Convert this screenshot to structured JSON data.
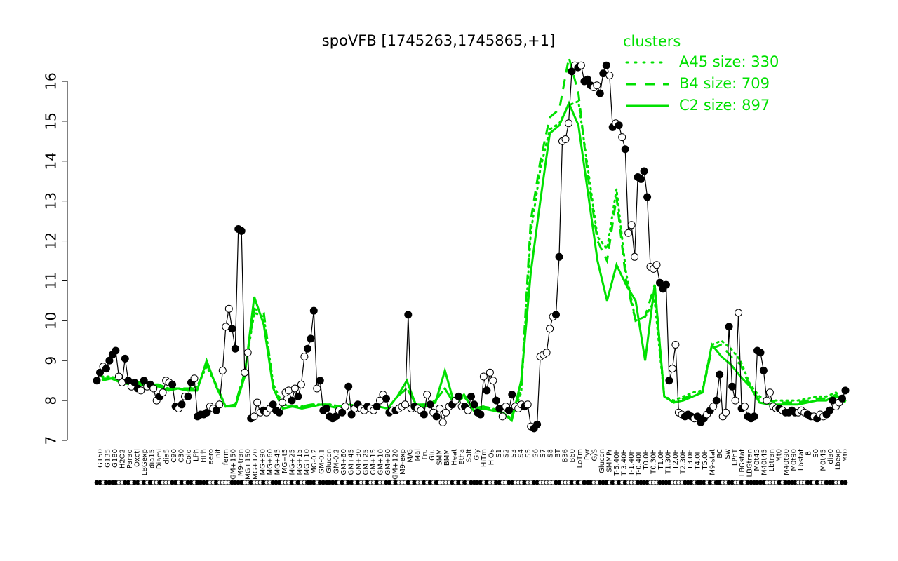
{
  "chart_data": {
    "type": "line",
    "title": "spoVFB [1745263,1745865,+1]",
    "xlabel": "",
    "ylabel": "",
    "ylim": [
      7,
      16.5
    ],
    "yticks": [
      7,
      8,
      9,
      10,
      11,
      12,
      13,
      14,
      15,
      16
    ],
    "xtick_labels": [
      "G150",
      "G135",
      "G180",
      "H2O2",
      "Paraq",
      "Oxctl",
      "LBGexp",
      "dia15",
      "Diami",
      "dia5",
      "C90",
      "C30",
      "Cold",
      "LPh",
      "HPh",
      "aero",
      "nit",
      "ferm",
      "GM+150",
      "M9-tran",
      "MG+150",
      "MG+120",
      "MG+90",
      "MG+60",
      "MG+45",
      "MG+t5",
      "MG+25",
      "MG+15",
      "MG+10",
      "MG-0.2",
      "GM-0.1",
      "Glucon",
      "GM-0.2",
      "GM+60",
      "GM+45",
      "GM+30",
      "GM+25",
      "GM+15",
      "GM+10",
      "GM+90",
      "GM+120",
      "M9-exp",
      "M/G",
      "Mal",
      "Fru",
      "Glu",
      "SMM",
      "BMM",
      "Heat",
      "Etha",
      "Salt",
      "Gly",
      "HiTm",
      "HiOs",
      "S1",
      "S2",
      "S3",
      "S4",
      "S5",
      "S6",
      "S7",
      "S8",
      "BT",
      "B36",
      "B60",
      "LoTm",
      "Pyr",
      "G/S",
      "Glucon",
      "SMMPr",
      "T-5.40H",
      "T-3.40H",
      "T-1.40H",
      "T-0.40H",
      "T0.0H",
      "T0.30H",
      "T1.0H",
      "T1.30H",
      "T2.0H",
      "T2.30H",
      "T3.0H",
      "T4.0H",
      "T5.0H",
      "M9-stat",
      "BC",
      "Sw",
      "LPhT",
      "LBGstat",
      "LBGtran",
      "M0t45",
      "M40t45",
      "Lbtran",
      "Mt0",
      "M40t90",
      "M0t90",
      "Lbstat",
      "BI",
      "S0",
      "M0t45",
      "dia0",
      "Lbexp",
      "Mt0"
    ],
    "main_series": {
      "values": [
        8.5,
        8.7,
        8.85,
        8.8,
        9.0,
        9.15,
        9.25,
        8.6,
        8.45,
        9.05,
        8.5,
        8.35,
        8.45,
        8.3,
        8.25,
        8.5,
        8.35,
        8.4,
        8.3,
        8.0,
        8.1,
        8.2,
        8.5,
        8.45,
        8.4,
        7.85,
        7.8,
        7.9,
        8.1,
        8.1,
        8.45,
        8.55,
        7.6,
        7.65,
        7.65,
        7.7,
        7.85,
        7.8,
        7.75,
        7.9,
        8.75,
        9.85,
        10.3,
        9.8,
        9.3,
        12.3,
        12.25,
        8.7,
        9.2,
        7.55,
        7.6,
        7.95,
        7.7,
        7.75,
        7.7,
        7.8,
        7.9,
        7.75,
        7.7,
        7.95,
        8.2,
        8.25,
        8.0,
        8.3,
        8.1,
        8.4,
        9.1,
        9.3,
        9.55,
        10.25,
        8.3,
        8.5,
        7.75,
        7.8,
        7.6,
        7.55,
        7.6,
        7.75,
        7.7,
        7.85,
        8.35,
        7.65,
        7.8,
        7.9,
        7.8,
        7.75,
        7.85,
        7.8,
        7.75,
        7.85,
        8.0,
        8.15,
        8.05,
        7.7,
        7.75,
        7.75,
        7.8,
        7.85,
        7.9,
        10.15,
        7.8,
        7.85,
        7.8,
        7.75,
        7.65,
        8.15,
        7.9,
        7.7,
        7.6,
        7.8,
        7.45,
        7.7,
        7.85,
        7.9,
        8.0,
        8.1,
        7.85,
        7.85,
        7.75,
        8.1,
        7.9,
        7.7,
        7.65,
        8.6,
        8.25,
        8.7,
        8.5,
        8.0,
        7.8,
        7.6,
        7.85,
        7.75,
        8.15,
        7.85,
        7.8,
        7.9,
        7.85,
        7.9,
        7.35,
        7.3,
        7.4,
        9.1,
        9.15,
        9.2,
        9.8,
        10.1,
        10.15,
        11.6,
        14.5,
        14.55,
        14.95,
        16.25,
        16.4,
        16.35,
        16.4,
        16.0,
        16.05,
        15.9,
        15.85,
        15.9,
        15.7,
        16.2,
        16.4,
        16.15,
        14.85,
        14.95,
        14.9,
        14.6,
        14.3,
        12.2,
        12.4,
        11.6,
        13.6,
        13.55,
        13.75,
        13.1,
        11.35,
        11.3,
        11.4,
        10.95,
        10.8,
        10.9,
        8.5,
        8.8,
        9.4,
        7.7,
        7.65,
        7.6,
        7.65,
        7.6,
        7.55,
        7.6,
        7.45,
        7.55,
        7.65,
        7.75,
        7.85,
        8.0,
        8.65,
        7.6,
        7.7,
        9.85,
        8.35,
        8.0,
        10.2,
        7.8,
        7.85,
        7.6,
        7.55,
        7.6,
        9.25,
        9.2,
        8.75,
        8.0,
        8.2,
        7.85,
        7.8,
        7.8,
        7.75,
        7.7,
        7.7,
        7.75,
        7.7,
        7.7,
        7.75,
        7.7,
        7.65,
        7.6,
        7.6,
        7.55,
        7.65,
        7.6,
        7.65,
        7.75,
        8.0,
        7.85,
        7.95,
        8.05,
        8.25
      ]
    },
    "main_filled_markers": [
      0,
      1,
      3,
      4,
      5,
      6,
      9,
      10,
      12,
      13,
      15,
      17,
      20,
      24,
      25,
      27,
      29,
      30,
      32,
      33,
      34,
      35,
      38,
      43,
      44,
      45,
      46,
      49,
      53,
      56,
      57,
      58,
      62,
      64,
      67,
      68,
      69,
      71,
      72,
      73,
      74,
      75,
      76,
      78,
      80,
      81,
      83,
      86,
      89,
      92,
      93,
      95,
      99,
      101,
      104,
      106,
      108,
      113,
      115,
      117,
      119,
      120,
      121,
      122,
      124,
      127,
      128,
      131,
      132,
      136,
      139,
      140,
      146,
      147,
      151,
      153,
      155,
      156,
      157,
      160,
      161,
      162,
      164,
      166,
      168,
      172,
      173,
      174,
      175,
      179,
      180,
      181,
      182,
      187,
      188,
      189,
      191,
      192,
      193,
      195,
      197,
      198,
      201,
      202,
      205,
      207,
      208,
      209,
      210,
      211,
      212,
      217,
      219,
      220,
      221,
      222,
      226,
      227,
      229,
      232,
      233,
      234,
      237,
      238,
      243,
      244,
      245,
      246,
      247,
      250,
      251
    ],
    "series": [
      {
        "name": "A45 size: 330",
        "style": "dotted",
        "color": "#00e000",
        "values": [
          8.6,
          8.6,
          8.5,
          8.45,
          8.45,
          8.4,
          8.4,
          8.3,
          8.3,
          8.3,
          8.35,
          8.85,
          8.4,
          7.85,
          7.9,
          8.7,
          10.2,
          10.1,
          8.4,
          7.9,
          7.85,
          7.85,
          7.9,
          7.9,
          7.9,
          7.85,
          7.9,
          7.85,
          7.85,
          7.85,
          7.8,
          8.1,
          8.3,
          7.9,
          7.9,
          8.0,
          8.3,
          7.9,
          8.1,
          7.8,
          7.85,
          7.8,
          7.7,
          7.55,
          8.2,
          12.2,
          13.8,
          14.8,
          14.95,
          15.4,
          15.5,
          13.8,
          12.1,
          11.8,
          13.3,
          11.2,
          10.0,
          10.1,
          10.5,
          8.1,
          8.0,
          8.1,
          8.2,
          8.25,
          9.4,
          9.5,
          9.3,
          9.0,
          8.4,
          8.1,
          8.0,
          8.0,
          8.0,
          8.0,
          8.05,
          8.1,
          8.1,
          8.2,
          8.0
        ]
      },
      {
        "name": "B4 size: 709",
        "style": "dashed",
        "color": "#00e000",
        "values": [
          8.55,
          8.55,
          8.5,
          8.45,
          8.45,
          8.4,
          8.4,
          8.3,
          8.3,
          8.3,
          8.3,
          8.9,
          8.4,
          7.85,
          7.9,
          8.7,
          10.3,
          10.2,
          8.35,
          7.85,
          7.85,
          7.85,
          7.9,
          7.9,
          7.9,
          7.85,
          7.9,
          7.85,
          7.8,
          7.85,
          7.8,
          8.1,
          8.3,
          7.9,
          7.9,
          8.0,
          8.3,
          7.9,
          8.1,
          7.8,
          7.85,
          7.8,
          7.7,
          7.6,
          8.3,
          12.5,
          14.0,
          15.1,
          15.3,
          16.6,
          15.7,
          13.6,
          12.0,
          11.5,
          13.1,
          11.0,
          10.0,
          10.1,
          10.9,
          8.1,
          7.95,
          8.05,
          8.15,
          8.2,
          9.3,
          9.4,
          9.1,
          8.9,
          8.35,
          8.0,
          8.0,
          7.95,
          7.95,
          7.95,
          8.0,
          8.05,
          8.05,
          8.1,
          8.0
        ]
      },
      {
        "name": "C2 size: 897",
        "style": "solid",
        "color": "#00e000",
        "values": [
          8.5,
          8.55,
          8.45,
          8.4,
          8.4,
          8.35,
          8.35,
          8.25,
          8.3,
          8.25,
          8.25,
          9.0,
          8.35,
          7.85,
          7.85,
          8.6,
          10.6,
          9.9,
          8.3,
          7.8,
          7.85,
          7.8,
          7.85,
          7.9,
          7.85,
          7.8,
          7.9,
          7.8,
          7.8,
          7.85,
          7.8,
          8.1,
          8.5,
          7.85,
          7.85,
          7.95,
          8.75,
          7.9,
          8.15,
          7.75,
          7.8,
          7.75,
          7.7,
          7.5,
          8.5,
          11.2,
          13.0,
          14.7,
          14.9,
          15.45,
          14.9,
          13.2,
          11.5,
          10.5,
          11.4,
          10.9,
          10.5,
          9.0,
          10.9,
          8.1,
          7.95,
          8.0,
          8.1,
          8.2,
          9.4,
          9.1,
          8.9,
          8.6,
          8.35,
          7.95,
          7.9,
          7.9,
          7.9,
          7.9,
          7.95,
          8.0,
          8.0,
          8.15,
          7.95
        ]
      }
    ],
    "legend": {
      "title": "clusters",
      "position": "top-right",
      "entries": [
        "A45 size: 330",
        "B4 size: 709",
        "C2 size: 897"
      ]
    },
    "grid": false,
    "colors": {
      "main": "#000000",
      "clusters": "#00e000"
    }
  }
}
